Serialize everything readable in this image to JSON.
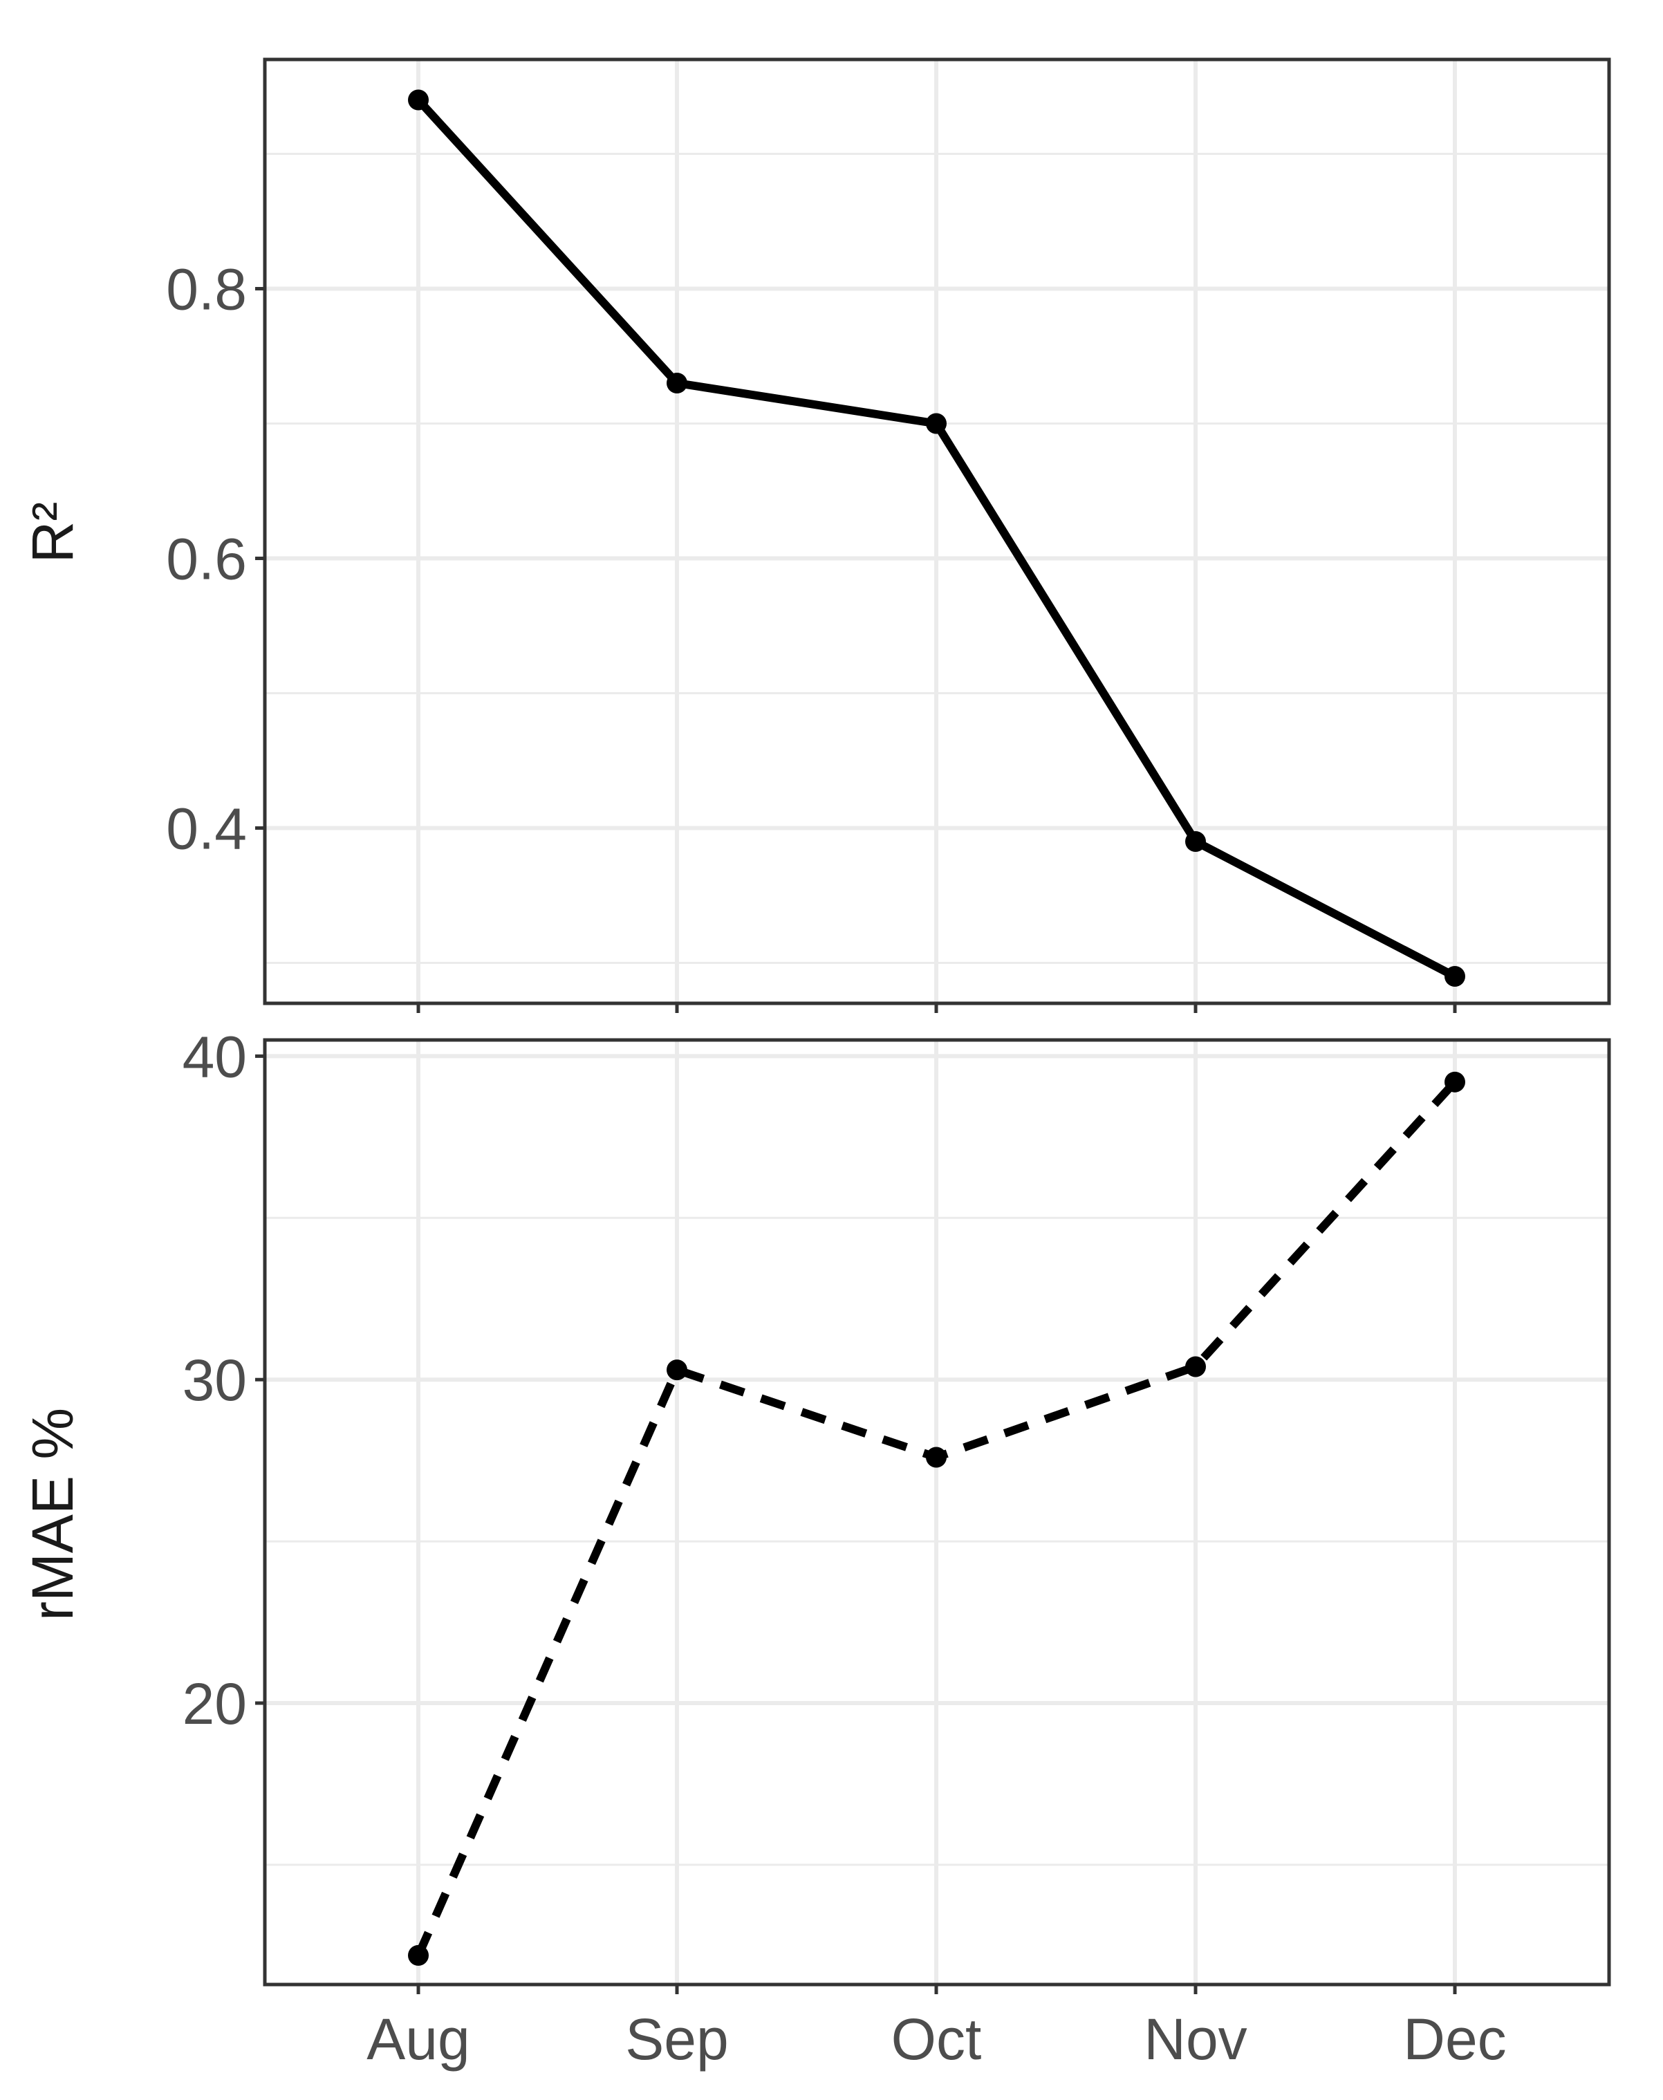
{
  "chart_data": [
    {
      "type": "line",
      "categories": [
        "Aug",
        "Sep",
        "Oct",
        "Nov",
        "Dec"
      ],
      "values": [
        0.94,
        0.73,
        0.7,
        0.39,
        0.29
      ],
      "ylabel": "R²",
      "xlabel": "",
      "ylim": [
        0.27,
        0.97
      ],
      "yticks": [
        0.4,
        0.6,
        0.8
      ],
      "ytick_labels": [
        "0.4",
        "0.6",
        "0.8"
      ],
      "line_style": "solid",
      "grid": true,
      "show_xtick_labels": false
    },
    {
      "type": "line",
      "categories": [
        "Aug",
        "Sep",
        "Oct",
        "Nov",
        "Dec"
      ],
      "values": [
        12.2,
        30.3,
        27.6,
        30.4,
        39.2
      ],
      "ylabel": "rMAE %",
      "xlabel": "",
      "ylim": [
        11.3,
        40.5
      ],
      "yticks": [
        20,
        30,
        40
      ],
      "ytick_labels": [
        "20",
        "30",
        "40"
      ],
      "line_style": "dashed",
      "grid": true,
      "show_xtick_labels": true
    }
  ],
  "colors": {
    "line": "#000000",
    "grid": "#ebebeb",
    "panel_border": "#333333",
    "tick_text": "#4d4d4d"
  }
}
